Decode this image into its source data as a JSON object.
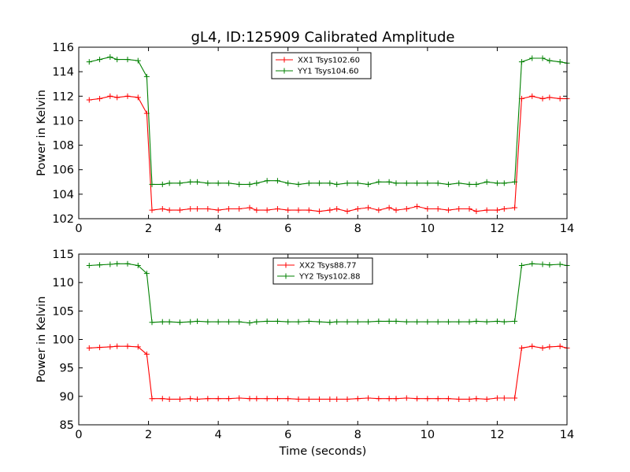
{
  "figure": {
    "title": "gL4, ID:125909 Calibrated Amplitude",
    "xlabel": "Time (seconds)"
  },
  "chart_data": [
    {
      "type": "line",
      "title": "gL4, ID:125909 Calibrated Amplitude",
      "xlabel": "",
      "ylabel": "Power in Kelvin",
      "xlim": [
        0,
        14
      ],
      "ylim": [
        102,
        116
      ],
      "xticks": [
        0,
        2,
        4,
        6,
        8,
        10,
        12,
        14
      ],
      "yticks": [
        102,
        104,
        106,
        108,
        110,
        112,
        114,
        116
      ],
      "legend_position": "top-center",
      "grid": false,
      "x": [
        0.3,
        0.6,
        0.9,
        1.1,
        1.4,
        1.7,
        1.95,
        2.1,
        2.4,
        2.6,
        2.9,
        3.2,
        3.4,
        3.7,
        4.0,
        4.3,
        4.6,
        4.9,
        5.1,
        5.4,
        5.7,
        6.0,
        6.3,
        6.6,
        6.9,
        7.2,
        7.4,
        7.7,
        8.0,
        8.3,
        8.6,
        8.9,
        9.1,
        9.4,
        9.7,
        10.0,
        10.3,
        10.6,
        10.9,
        11.2,
        11.4,
        11.7,
        12.0,
        12.2,
        12.5,
        12.7,
        13.0,
        13.3,
        13.5,
        13.8,
        14.0
      ],
      "series": [
        {
          "name": "XX1 Tsys102.60",
          "color": "#ff0000",
          "values": [
            111.7,
            111.8,
            112.0,
            111.9,
            112.0,
            111.9,
            110.6,
            102.7,
            102.8,
            102.7,
            102.7,
            102.8,
            102.8,
            102.8,
            102.7,
            102.8,
            102.8,
            102.9,
            102.7,
            102.7,
            102.8,
            102.7,
            102.7,
            102.7,
            102.6,
            102.7,
            102.8,
            102.6,
            102.8,
            102.9,
            102.7,
            102.9,
            102.7,
            102.8,
            103.0,
            102.8,
            102.8,
            102.7,
            102.8,
            102.8,
            102.6,
            102.7,
            102.7,
            102.8,
            102.9,
            111.8,
            112.0,
            111.8,
            111.9,
            111.8,
            111.8
          ]
        },
        {
          "name": "YY1 Tsys104.60",
          "color": "#008000",
          "values": [
            114.8,
            115.0,
            115.2,
            115.0,
            115.0,
            114.9,
            113.6,
            104.8,
            104.8,
            104.9,
            104.9,
            105.0,
            105.0,
            104.9,
            104.9,
            104.9,
            104.8,
            104.8,
            104.9,
            105.1,
            105.1,
            104.9,
            104.8,
            104.9,
            104.9,
            104.9,
            104.8,
            104.9,
            104.9,
            104.8,
            105.0,
            105.0,
            104.9,
            104.9,
            104.9,
            104.9,
            104.9,
            104.8,
            104.9,
            104.8,
            104.8,
            105.0,
            104.9,
            104.9,
            105.0,
            114.8,
            115.1,
            115.1,
            114.9,
            114.8,
            114.7
          ]
        }
      ]
    },
    {
      "type": "line",
      "title": "",
      "xlabel": "Time (seconds)",
      "ylabel": "Power in Kelvin",
      "xlim": [
        0,
        14
      ],
      "ylim": [
        85,
        115
      ],
      "xticks": [
        0,
        2,
        4,
        6,
        8,
        10,
        12,
        14
      ],
      "yticks": [
        85,
        90,
        95,
        100,
        105,
        110,
        115
      ],
      "legend_position": "top-center",
      "grid": false,
      "x": [
        0.3,
        0.6,
        0.9,
        1.1,
        1.4,
        1.7,
        1.95,
        2.1,
        2.4,
        2.6,
        2.9,
        3.2,
        3.4,
        3.7,
        4.0,
        4.3,
        4.6,
        4.9,
        5.1,
        5.4,
        5.7,
        6.0,
        6.3,
        6.6,
        6.9,
        7.2,
        7.4,
        7.7,
        8.0,
        8.3,
        8.6,
        8.9,
        9.1,
        9.4,
        9.7,
        10.0,
        10.3,
        10.6,
        10.9,
        11.2,
        11.4,
        11.7,
        12.0,
        12.2,
        12.5,
        12.7,
        13.0,
        13.3,
        13.5,
        13.8,
        14.0
      ],
      "series": [
        {
          "name": "XX2 Tsys88.77",
          "color": "#ff0000",
          "values": [
            98.5,
            98.6,
            98.7,
            98.8,
            98.8,
            98.7,
            97.4,
            89.6,
            89.6,
            89.5,
            89.5,
            89.6,
            89.5,
            89.6,
            89.6,
            89.6,
            89.7,
            89.6,
            89.6,
            89.6,
            89.6,
            89.6,
            89.5,
            89.5,
            89.5,
            89.5,
            89.5,
            89.5,
            89.6,
            89.7,
            89.6,
            89.6,
            89.6,
            89.7,
            89.6,
            89.6,
            89.6,
            89.6,
            89.5,
            89.5,
            89.6,
            89.5,
            89.7,
            89.7,
            89.7,
            98.5,
            98.8,
            98.5,
            98.7,
            98.8,
            98.5
          ]
        },
        {
          "name": "YY2 Tsys102.88",
          "color": "#008000",
          "values": [
            113.0,
            113.1,
            113.2,
            113.3,
            113.3,
            113.0,
            111.6,
            103.0,
            103.1,
            103.1,
            103.0,
            103.1,
            103.2,
            103.1,
            103.1,
            103.1,
            103.1,
            102.9,
            103.1,
            103.2,
            103.2,
            103.1,
            103.1,
            103.2,
            103.1,
            103.0,
            103.1,
            103.1,
            103.1,
            103.1,
            103.2,
            103.2,
            103.2,
            103.1,
            103.1,
            103.1,
            103.1,
            103.1,
            103.1,
            103.1,
            103.2,
            103.1,
            103.2,
            103.1,
            103.2,
            113.0,
            113.3,
            113.2,
            113.1,
            113.2,
            113.0
          ]
        }
      ]
    }
  ]
}
